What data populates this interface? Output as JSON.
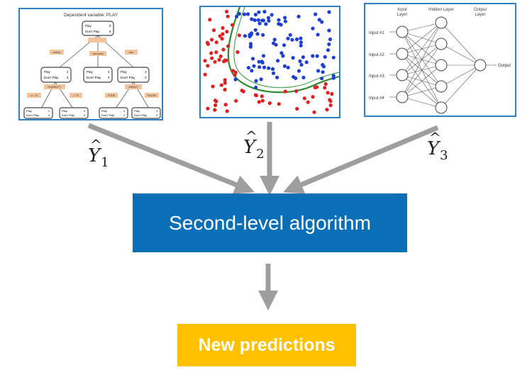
{
  "tree": {
    "title": "Dependent variable: PLAY",
    "root": {
      "play": "Play",
      "play_n": "9",
      "dont": "Don't Play",
      "dont_n": "5"
    },
    "edges": [
      "sunny",
      "overcast",
      "rain"
    ],
    "split_left": "HUMIDITY",
    "split_right": "WINDY",
    "mid_left": {
      "play": "Play",
      "play_n": "2",
      "dont": "Don't Play",
      "dont_n": "3"
    },
    "mid_center": {
      "play": "Play",
      "play_n": "4",
      "dont": "Don't Play",
      "dont_n": "0"
    },
    "mid_right": {
      "play": "Play",
      "play_n": "3",
      "dont": "Don't Play",
      "dont_n": "2"
    },
    "leaf_edges": [
      "<= 70",
      "> 70",
      "TRUE",
      "FALSE"
    ],
    "leaves": [
      {
        "play": "Play",
        "play_n": "2",
        "dont": "Don't Play",
        "dont_n": "0"
      },
      {
        "play": "Play",
        "play_n": "0",
        "dont": "Don't Play",
        "dont_n": "3"
      },
      {
        "play": "Play",
        "play_n": "0",
        "dont": "Don't Play",
        "dont_n": "2"
      },
      {
        "play": "Play",
        "play_n": "3",
        "dont": "Don't Play",
        "dont_n": "0"
      }
    ]
  },
  "nn": {
    "input_layer": [
      "Input",
      "Layer"
    ],
    "hidden_layer": "Hidden Layer",
    "output_layer": [
      "Output",
      "Layer"
    ],
    "inputs": [
      "Input #1",
      "Input #2",
      "Input #3",
      "Input #4"
    ],
    "output": "Output"
  },
  "yhat": [
    {
      "letter": "Y",
      "sub": "1"
    },
    {
      "letter": "Y",
      "sub": "2"
    },
    {
      "letter": "Y",
      "sub": "3"
    }
  ],
  "second_level": "Second-level algorithm",
  "new_predictions": "New predictions",
  "colors": {
    "blue_box": "#0b6fb8",
    "gold_box": "#ffc000",
    "arrow": "#9e9e9e",
    "panel_border": "#2f7fc2"
  }
}
